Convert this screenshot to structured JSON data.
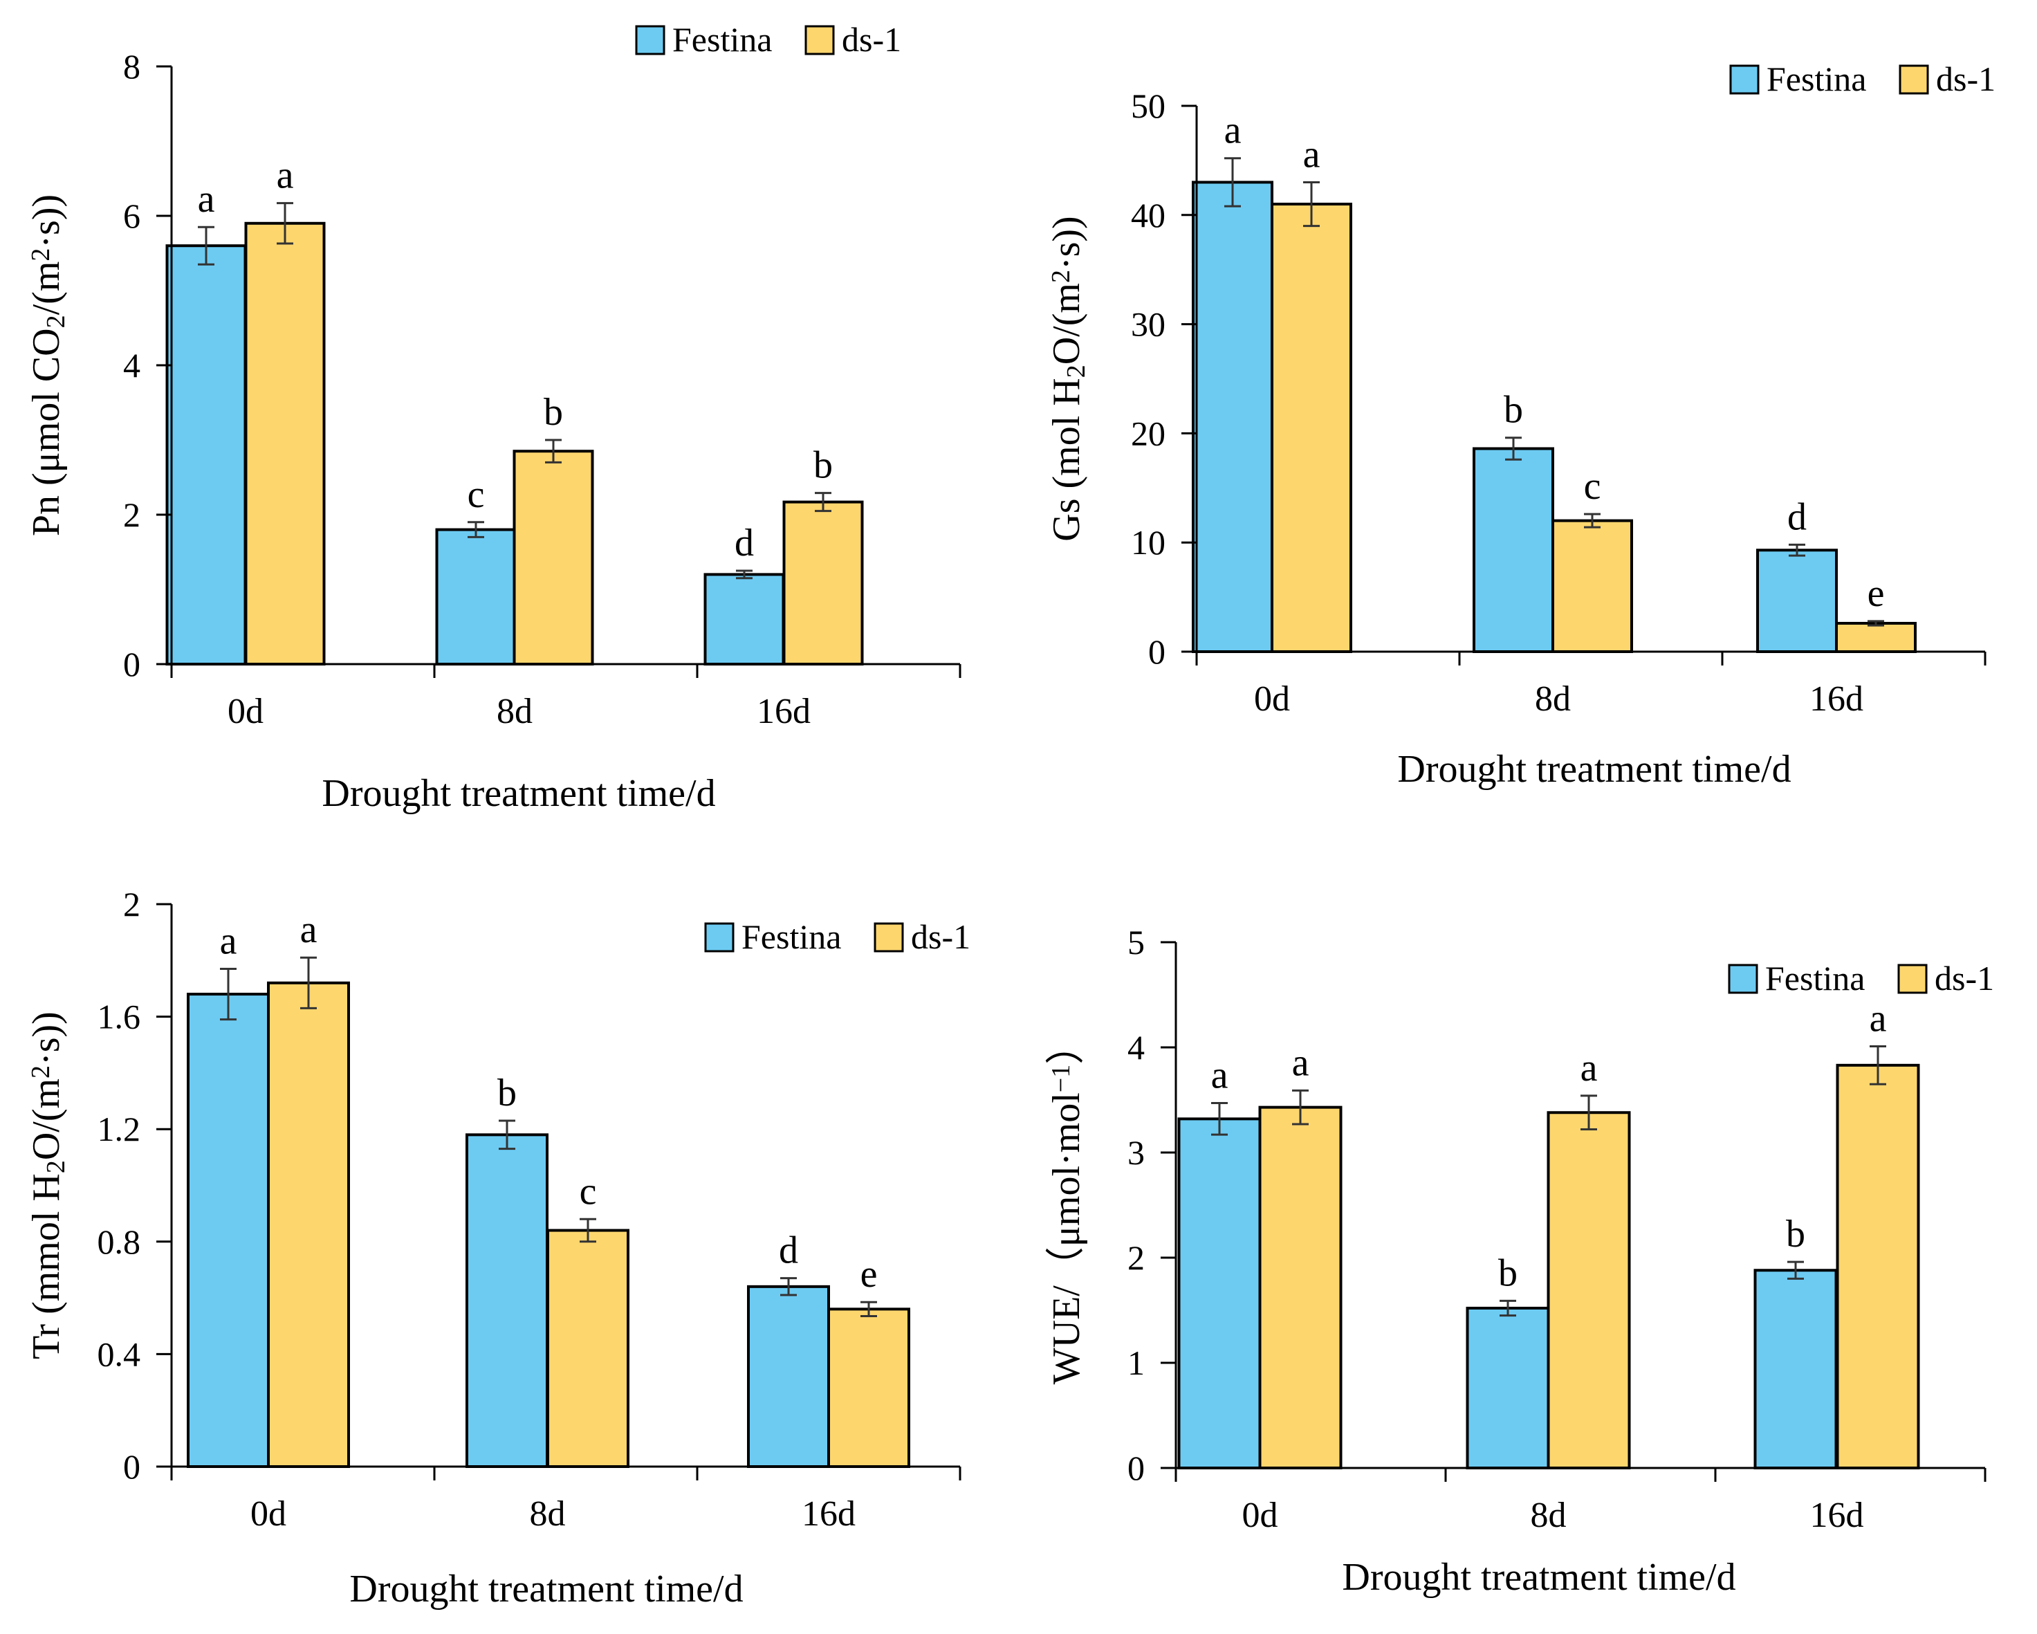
{
  "colors": {
    "festina": "#6DCBF2",
    "ds1": "#FDD66E",
    "axis": "#000000"
  },
  "chart_data": [
    {
      "id": "pn",
      "type": "bar",
      "categories": [
        "0d",
        "8d",
        "16d"
      ],
      "series": [
        {
          "name": "Festina",
          "values": [
            5.6,
            1.8,
            1.2
          ],
          "errors": [
            0.25,
            0.1,
            0.05
          ],
          "labels": [
            "a",
            "c",
            "d"
          ]
        },
        {
          "name": "ds-1",
          "values": [
            5.9,
            2.85,
            2.17
          ],
          "errors": [
            0.27,
            0.15,
            0.12
          ],
          "labels": [
            "a",
            "b",
            "b"
          ]
        }
      ],
      "ylim": [
        0,
        8
      ],
      "yticks": [
        0,
        2,
        4,
        6,
        8
      ],
      "ytick_labels": [
        "0",
        "2",
        "4",
        "6",
        "8"
      ],
      "ylabel_prefix": "Pn (μmol CO",
      "ylabel_sub": "2",
      "ylabel_mid": "/(m",
      "ylabel_sup": "2",
      "ylabel_suffix": "·s))",
      "xlabel": "Drought treatment time/d",
      "legend": "top-right"
    },
    {
      "id": "gs",
      "type": "bar",
      "categories": [
        "0d",
        "8d",
        "16d"
      ],
      "series": [
        {
          "name": "Festina",
          "values": [
            43,
            18.6,
            9.3
          ],
          "errors": [
            2.2,
            1.0,
            0.5
          ],
          "labels": [
            "a",
            "b",
            "d"
          ]
        },
        {
          "name": "ds-1",
          "values": [
            41,
            12.0,
            2.6
          ],
          "errors": [
            2.0,
            0.6,
            0.2
          ],
          "labels": [
            "a",
            "c",
            "e"
          ]
        }
      ],
      "ylim": [
        0,
        50
      ],
      "yticks": [
        0,
        10,
        20,
        30,
        40,
        50
      ],
      "ytick_labels": [
        "0",
        "10",
        "20",
        "30",
        "40",
        "50"
      ],
      "ylabel_prefix": "Gs (mol H",
      "ylabel_sub": "2",
      "ylabel_mid": "O/(m",
      "ylabel_sup": "2",
      "ylabel_suffix": "·s))",
      "xlabel": "Drought treatment time/d",
      "legend": "top-right"
    },
    {
      "id": "tr",
      "type": "bar",
      "categories": [
        "0d",
        "8d",
        "16d"
      ],
      "series": [
        {
          "name": "Festina",
          "values": [
            1.68,
            1.18,
            0.64
          ],
          "errors": [
            0.09,
            0.05,
            0.03
          ],
          "labels": [
            "a",
            "b",
            "d"
          ]
        },
        {
          "name": "ds-1",
          "values": [
            1.72,
            0.84,
            0.56
          ],
          "errors": [
            0.09,
            0.04,
            0.025
          ],
          "labels": [
            "a",
            "c",
            "e"
          ]
        }
      ],
      "ylim": [
        0,
        2
      ],
      "yticks": [
        0,
        0.4,
        0.8,
        1.2,
        1.6,
        2
      ],
      "ytick_labels": [
        "0",
        "0.4",
        "0.8",
        "1.2",
        "1.6",
        "2"
      ],
      "ylabel_prefix": "Tr (mmol H",
      "ylabel_sub": "2",
      "ylabel_mid": "O/(m",
      "ylabel_sup": "2",
      "ylabel_suffix": "·s))",
      "xlabel": "Drought treatment time/d",
      "legend": "top-right"
    },
    {
      "id": "wue",
      "type": "bar",
      "categories": [
        "0d",
        "8d",
        "16d"
      ],
      "series": [
        {
          "name": "Festina",
          "values": [
            3.32,
            1.52,
            1.88
          ],
          "errors": [
            0.15,
            0.07,
            0.08
          ],
          "labels": [
            "a",
            "b",
            "b"
          ]
        },
        {
          "name": "ds-1",
          "values": [
            3.43,
            3.38,
            3.83
          ],
          "errors": [
            0.16,
            0.16,
            0.18
          ],
          "labels": [
            "a",
            "a",
            "a"
          ]
        }
      ],
      "ylim": [
        0,
        5
      ],
      "yticks": [
        0,
        1,
        2,
        3,
        4,
        5
      ],
      "ytick_labels": [
        "0",
        "1",
        "2",
        "3",
        "4",
        "5"
      ],
      "ylabel_prefix": "WUE/（μmol·mol",
      "ylabel_sub": "",
      "ylabel_mid": "",
      "ylabel_sup": "−1",
      "ylabel_suffix": "）",
      "xlabel": "Drought treatment time/d",
      "legend": "top-right"
    }
  ]
}
